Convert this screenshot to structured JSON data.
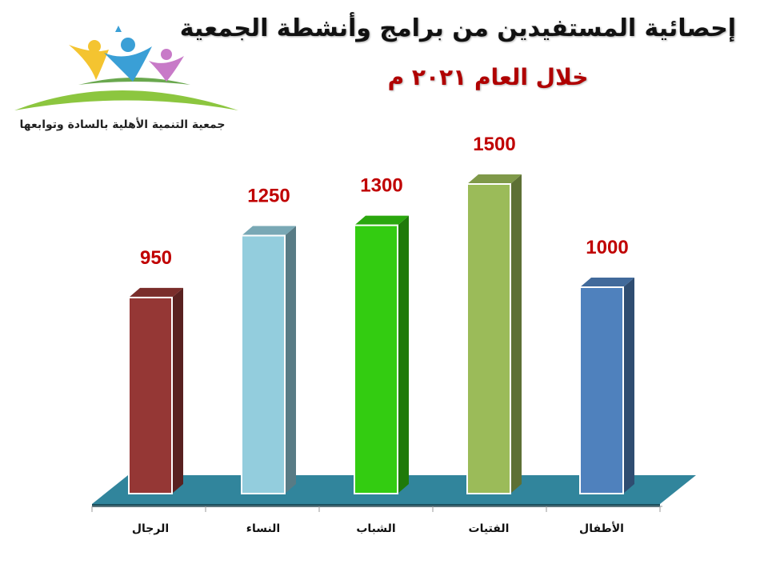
{
  "header": {
    "title": "إحصائية المستفيدين من برامج وأنشطة الجمعية",
    "subtitle": "خلال العام ٢٠٢١ م",
    "logo_text": "جمعية التنمية الأهلية بالسادة وتوابعها"
  },
  "chart_data": {
    "type": "bar",
    "categories": [
      "الرجال",
      "النساء",
      "الشباب",
      "الفتيات",
      "الأطفال"
    ],
    "values": [
      950,
      1250,
      1300,
      1500,
      1000
    ],
    "value_labels": [
      "950",
      "1250",
      "1300",
      "1500",
      "1000"
    ],
    "colors": [
      "#953735",
      "#93cddd",
      "#33cc11",
      "#9bbb59",
      "#4f81bd"
    ],
    "floor_color": "#31859c",
    "title": "إحصائية المستفيدين من برامج وأنشطة الجمعية",
    "subtitle": "خلال العام ٢٠٢١ م",
    "xlabel": "",
    "ylabel": "",
    "ylim": [
      0,
      1500
    ],
    "grid": false,
    "legend": "none"
  }
}
